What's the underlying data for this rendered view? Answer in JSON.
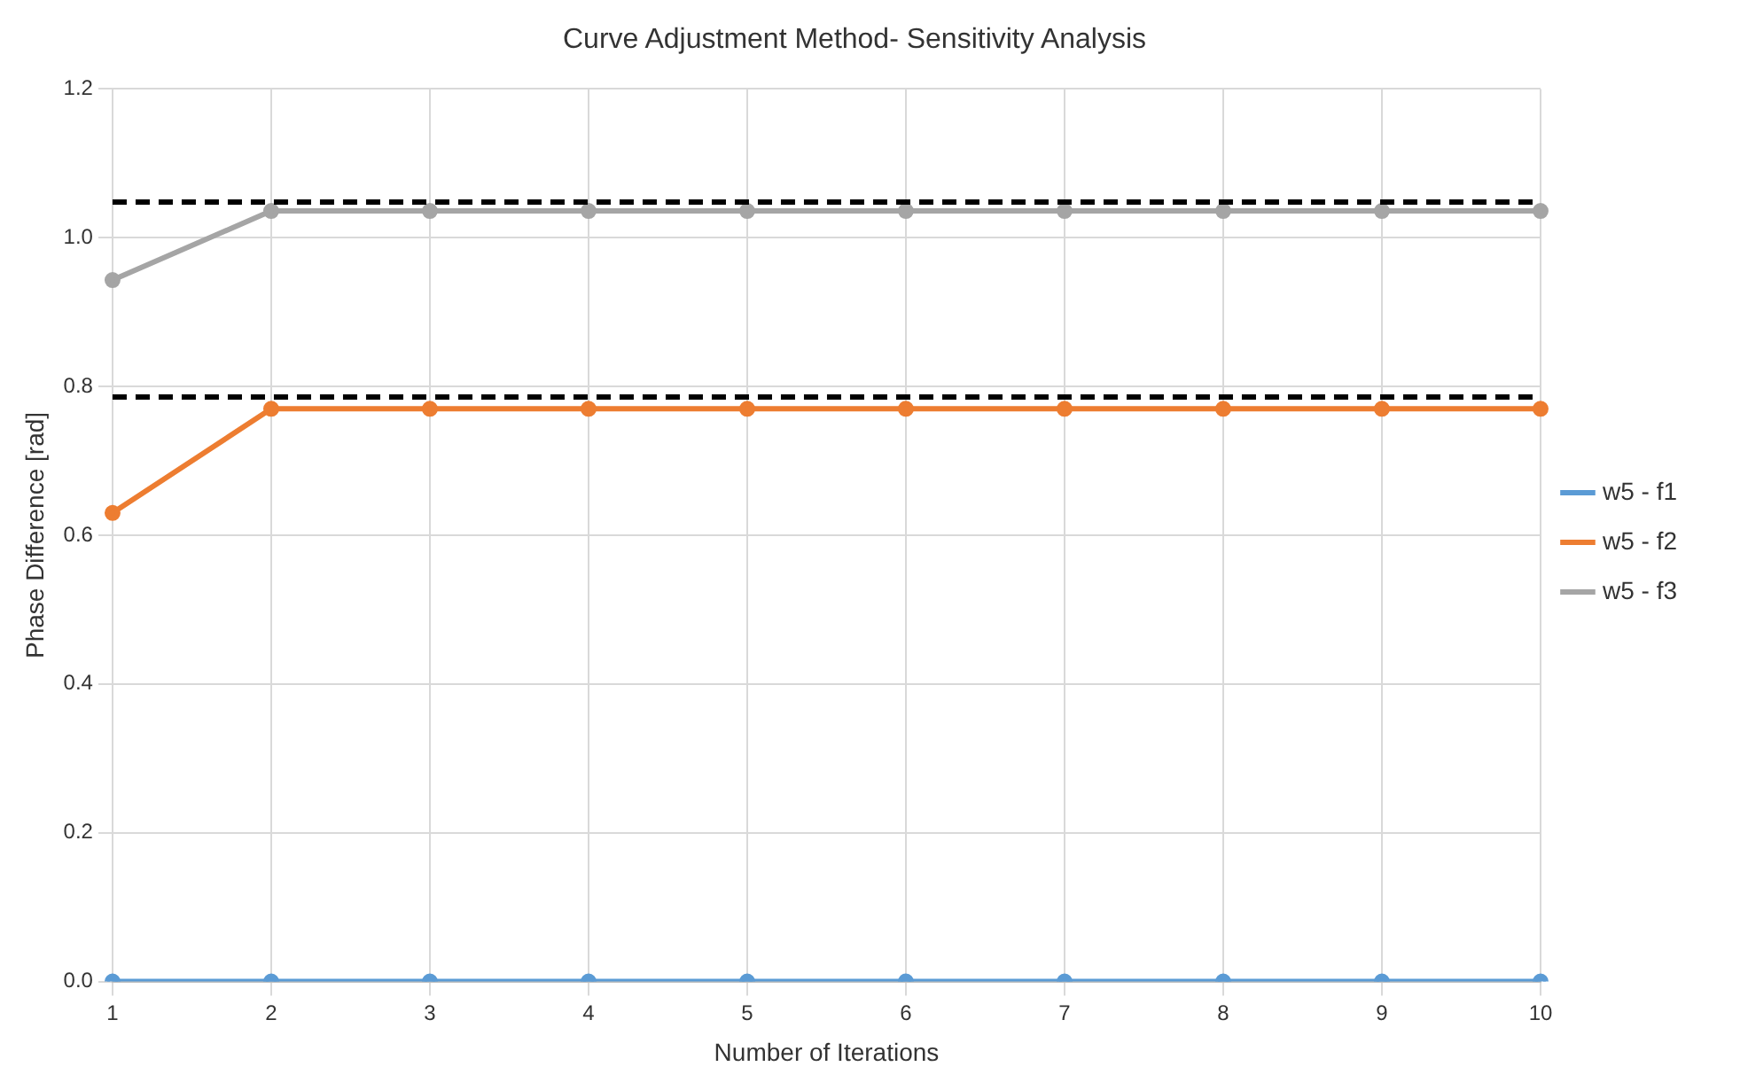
{
  "chart_data": {
    "type": "line",
    "title": "Curve Adjustment Method- Sensitivity Analysis",
    "xlabel": "Number of Iterations",
    "ylabel": "Phase Difference [rad]",
    "categories": [
      "1",
      "2",
      "3",
      "4",
      "5",
      "6",
      "7",
      "8",
      "9",
      "10"
    ],
    "series": [
      {
        "name": "w5 - f1",
        "color": "#5b9bd5",
        "values": [
          0,
          0,
          0,
          0,
          0,
          0,
          0,
          0,
          0,
          0
        ]
      },
      {
        "name": "w5 - f2",
        "color": "#ed7d31",
        "values": [
          0.63,
          0.77,
          0.77,
          0.77,
          0.77,
          0.77,
          0.77,
          0.77,
          0.77,
          0.77
        ]
      },
      {
        "name": "w5 - f3",
        "color": "#a5a5a5",
        "values": [
          0.943,
          1.036,
          1.036,
          1.036,
          1.036,
          1.036,
          1.036,
          1.036,
          1.036,
          1.036
        ]
      }
    ],
    "ylim": [
      0,
      1.2
    ],
    "yticks": [
      {
        "value": 0,
        "label": "0.0"
      },
      {
        "value": 0.2,
        "label": "0.2"
      },
      {
        "value": 0.4,
        "label": "0.4"
      },
      {
        "value": 0.6,
        "label": "0.6"
      },
      {
        "value": 0.8,
        "label": "0.8"
      },
      {
        "value": 1,
        "label": "1.0"
      },
      {
        "value": 1.2,
        "label": "1.2"
      }
    ],
    "ref_lines": [
      {
        "axis": "y",
        "value": 1.048,
        "color": "#000000",
        "line_style": "dashed"
      },
      {
        "axis": "y",
        "value": 0.786,
        "color": "#000000",
        "line_style": "dashed"
      }
    ],
    "grid": true,
    "legend": "right",
    "marker": "circle",
    "line_style": "solid"
  }
}
